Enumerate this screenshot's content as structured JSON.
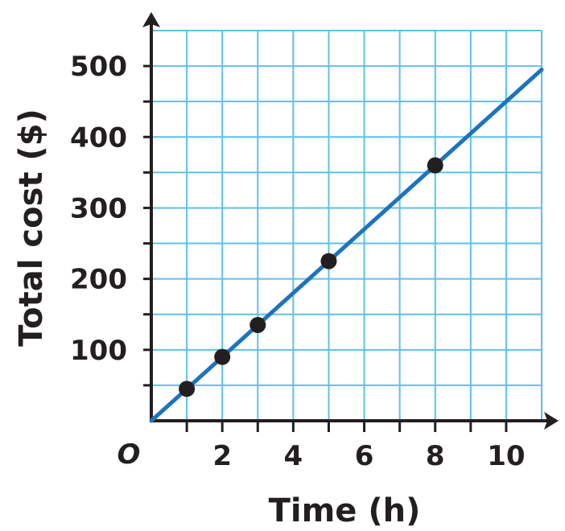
{
  "chart_data": {
    "type": "line",
    "title": "",
    "xlabel": "Time (h)",
    "ylabel": "Total cost ($)",
    "origin_label": "O",
    "xlim": [
      0,
      11
    ],
    "ylim": [
      0,
      550
    ],
    "x_grid_step": 1,
    "y_grid_step": 50,
    "x_tick_labels": [
      {
        "value": 2,
        "label": "2"
      },
      {
        "value": 4,
        "label": "4"
      },
      {
        "value": 6,
        "label": "6"
      },
      {
        "value": 8,
        "label": "8"
      },
      {
        "value": 10,
        "label": "10"
      }
    ],
    "y_tick_labels": [
      {
        "value": 100,
        "label": "100"
      },
      {
        "value": 200,
        "label": "200"
      },
      {
        "value": 300,
        "label": "300"
      },
      {
        "value": 400,
        "label": "400"
      },
      {
        "value": 500,
        "label": "500"
      }
    ],
    "grid": true,
    "line": {
      "x": [
        0,
        11
      ],
      "y": [
        0,
        495
      ]
    },
    "points": [
      {
        "x": 1,
        "y": 45
      },
      {
        "x": 2,
        "y": 90
      },
      {
        "x": 3,
        "y": 135
      },
      {
        "x": 5,
        "y": 225
      },
      {
        "x": 8,
        "y": 360
      }
    ],
    "colors": {
      "grid": "#5cc2e8",
      "line": "#1e73be",
      "points": "#231f20",
      "axes": "#231f20"
    }
  }
}
